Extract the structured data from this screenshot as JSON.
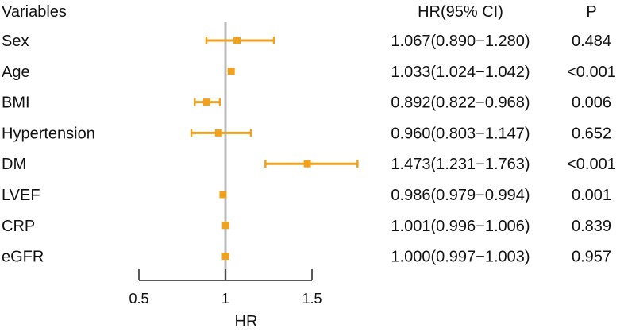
{
  "chart_data": {
    "type": "forest",
    "headers": {
      "variables": "Variables",
      "hr": "HR(95% CI)",
      "p": "P"
    },
    "xlabel": "HR",
    "xlim": [
      0.5,
      1.5
    ],
    "xticks": [
      "0.5",
      "1",
      "1.5"
    ],
    "reference_line": 1,
    "colors": {
      "point": "#F0A21E",
      "reference": "#BBBBBB",
      "axis": "#222222"
    },
    "rows": [
      {
        "variable": "Sex",
        "hr": 1.067,
        "lower": 0.89,
        "upper": 1.28,
        "hr_text": "1.067(0.890−1.280)",
        "p": "0.484"
      },
      {
        "variable": "Age",
        "hr": 1.033,
        "lower": 1.024,
        "upper": 1.042,
        "hr_text": "1.033(1.024−1.042)",
        "p": "<0.001"
      },
      {
        "variable": "BMI",
        "hr": 0.892,
        "lower": 0.822,
        "upper": 0.968,
        "hr_text": "0.892(0.822−0.968)",
        "p": "0.006"
      },
      {
        "variable": "Hypertension",
        "hr": 0.96,
        "lower": 0.803,
        "upper": 1.147,
        "hr_text": "0.960(0.803−1.147)",
        "p": "0.652"
      },
      {
        "variable": "DM",
        "hr": 1.473,
        "lower": 1.231,
        "upper": 1.763,
        "hr_text": "1.473(1.231−1.763)",
        "p": "<0.001"
      },
      {
        "variable": "LVEF",
        "hr": 0.986,
        "lower": 0.979,
        "upper": 0.994,
        "hr_text": "0.986(0.979−0.994)",
        "p": "0.001"
      },
      {
        "variable": "CRP",
        "hr": 1.001,
        "lower": 0.996,
        "upper": 1.006,
        "hr_text": "1.001(0.996−1.006)",
        "p": "0.839"
      },
      {
        "variable": "eGFR",
        "hr": 1.0,
        "lower": 0.997,
        "upper": 1.003,
        "hr_text": "1.000(0.997−1.003)",
        "p": "0.957"
      }
    ]
  }
}
